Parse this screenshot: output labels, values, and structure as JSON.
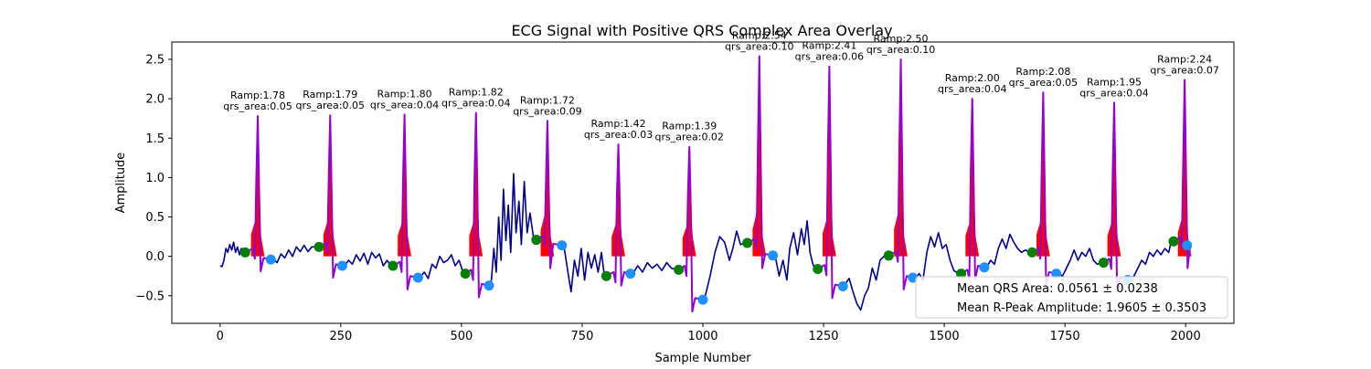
{
  "chart_data": {
    "type": "line",
    "title": "ECG Signal with Positive QRS Complex Area Overlay",
    "xlabel": "Sample Number",
    "ylabel": "Amplitude",
    "xlim": [
      -100,
      2100
    ],
    "ylim": [
      -0.85,
      2.72
    ],
    "x_ticks": [
      0,
      250,
      500,
      750,
      1000,
      1250,
      1500,
      1750,
      2000
    ],
    "y_ticks": [
      -0.5,
      0.0,
      0.5,
      1.0,
      1.5,
      2.0,
      2.5
    ],
    "x_tick_labels": [
      "0",
      "250",
      "500",
      "750",
      "1000",
      "1250",
      "1500",
      "1750",
      "2000"
    ],
    "y_tick_labels": [
      "−0.5",
      "0.0",
      "0.5",
      "1.0",
      "1.5",
      "2.0",
      "2.5"
    ],
    "grid": false,
    "colors": {
      "signal": "#00008b",
      "qrs_segment": "#9400d3",
      "qrs_area": "#ff0000",
      "qrs_onset": "#008000",
      "qrs_offset": "#1e90ff"
    },
    "beats": [
      {
        "r_sample": 78,
        "r_amp": 1.78,
        "qrs_area": 0.05,
        "label_line1": "Ramp:1.78",
        "label_line2": "qrs_area:0.05",
        "onset": [
          52,
          0.05
        ],
        "offset": [
          105,
          -0.04
        ]
      },
      {
        "r_sample": 228,
        "r_amp": 1.79,
        "qrs_area": 0.05,
        "label_line1": "Ramp:1.79",
        "label_line2": "qrs_area:0.05",
        "onset": [
          205,
          0.12
        ],
        "offset": [
          253,
          -0.12
        ]
      },
      {
        "r_sample": 382,
        "r_amp": 1.8,
        "qrs_area": 0.04,
        "label_line1": "Ramp:1.80",
        "label_line2": "qrs_area:0.04",
        "onset": [
          358,
          -0.12
        ],
        "offset": [
          410,
          -0.27
        ]
      },
      {
        "r_sample": 530,
        "r_amp": 1.82,
        "qrs_area": 0.04,
        "label_line1": "Ramp:1.82",
        "label_line2": "qrs_area:0.04",
        "onset": [
          508,
          -0.22
        ],
        "offset": [
          557,
          -0.37
        ]
      },
      {
        "r_sample": 678,
        "r_amp": 1.72,
        "qrs_area": 0.09,
        "label_line1": "Ramp:1.72",
        "label_line2": "qrs_area:0.09",
        "onset": [
          655,
          0.21
        ],
        "offset": [
          708,
          0.14
        ]
      },
      {
        "r_sample": 825,
        "r_amp": 1.42,
        "qrs_area": 0.03,
        "label_line1": "Ramp:1.42",
        "label_line2": "qrs_area:0.03",
        "onset": [
          800,
          -0.25
        ],
        "offset": [
          850,
          -0.22
        ]
      },
      {
        "r_sample": 972,
        "r_amp": 1.39,
        "qrs_area": 0.02,
        "label_line1": "Ramp:1.39",
        "label_line2": "qrs_area:0.02",
        "onset": [
          950,
          -0.17
        ],
        "offset": [
          1000,
          -0.55
        ]
      },
      {
        "r_sample": 1117,
        "r_amp": 2.54,
        "qrs_area": 0.1,
        "label_line1": "Ramp:2.54",
        "label_line2": "qrs_area:0.10",
        "onset": [
          1092,
          0.17
        ],
        "offset": [
          1145,
          0.01
        ]
      },
      {
        "r_sample": 1262,
        "r_amp": 2.41,
        "qrs_area": 0.06,
        "label_line1": "Ramp:2.41",
        "label_line2": "qrs_area:0.06",
        "onset": [
          1238,
          -0.16
        ],
        "offset": [
          1290,
          -0.38
        ]
      },
      {
        "r_sample": 1410,
        "r_amp": 2.5,
        "qrs_area": 0.1,
        "label_line1": "Ramp:2.50",
        "label_line2": "qrs_area:0.10",
        "onset": [
          1385,
          0.01
        ],
        "offset": [
          1435,
          -0.27
        ]
      },
      {
        "r_sample": 1558,
        "r_amp": 2.0,
        "qrs_area": 0.04,
        "label_line1": "Ramp:2.00",
        "label_line2": "qrs_area:0.04",
        "onset": [
          1535,
          -0.22
        ],
        "offset": [
          1583,
          -0.14
        ]
      },
      {
        "r_sample": 1705,
        "r_amp": 2.08,
        "qrs_area": 0.05,
        "label_line1": "Ramp:2.08",
        "label_line2": "qrs_area:0.05",
        "onset": [
          1682,
          0.05
        ],
        "offset": [
          1732,
          -0.22
        ]
      },
      {
        "r_sample": 1852,
        "r_amp": 1.95,
        "qrs_area": 0.04,
        "label_line1": "Ramp:1.95",
        "label_line2": "qrs_area:0.04",
        "onset": [
          1830,
          -0.08
        ],
        "offset": [
          1880,
          -0.3
        ]
      },
      {
        "r_sample": 1998,
        "r_amp": 2.24,
        "qrs_area": 0.07,
        "label_line1": "Ramp:2.24",
        "label_line2": "qrs_area:0.07",
        "onset": [
          1975,
          0.19
        ],
        "offset": [
          2003,
          0.14
        ]
      }
    ],
    "baseline_segments": [
      {
        "start": 0,
        "end": 47,
        "points": [
          [
            0,
            -0.12
          ],
          [
            4,
            -0.13
          ],
          [
            8,
            -0.05
          ],
          [
            12,
            0.1
          ],
          [
            16,
            0.05
          ],
          [
            20,
            0.15
          ],
          [
            24,
            0.08
          ],
          [
            28,
            0.18
          ],
          [
            32,
            0.05
          ],
          [
            36,
            0.12
          ],
          [
            40,
            0.02
          ],
          [
            44,
            0.1
          ],
          [
            47,
            0.05
          ]
        ]
      },
      {
        "start": 110,
        "end": 200,
        "points": [
          [
            110,
            -0.03
          ],
          [
            118,
            -0.08
          ],
          [
            126,
            0.03
          ],
          [
            134,
            -0.02
          ],
          [
            142,
            0.08
          ],
          [
            150,
            0.0
          ],
          [
            158,
            0.12
          ],
          [
            166,
            0.06
          ],
          [
            174,
            0.14
          ],
          [
            182,
            0.06
          ],
          [
            190,
            0.12
          ],
          [
            200,
            0.12
          ]
        ]
      },
      {
        "start": 258,
        "end": 353,
        "points": [
          [
            258,
            -0.12
          ],
          [
            266,
            -0.05
          ],
          [
            274,
            -0.1
          ],
          [
            282,
            0.02
          ],
          [
            290,
            -0.06
          ],
          [
            298,
            0.04
          ],
          [
            306,
            -0.1
          ],
          [
            314,
            0.05
          ],
          [
            322,
            -0.02
          ],
          [
            330,
            0.03
          ],
          [
            338,
            -0.12
          ],
          [
            346,
            -0.05
          ],
          [
            353,
            -0.12
          ]
        ]
      },
      {
        "start": 415,
        "end": 503,
        "points": [
          [
            415,
            -0.26
          ],
          [
            423,
            -0.2
          ],
          [
            431,
            -0.28
          ],
          [
            439,
            -0.1
          ],
          [
            447,
            -0.15
          ],
          [
            455,
            0.0
          ],
          [
            463,
            -0.08
          ],
          [
            471,
            -0.05
          ],
          [
            479,
            0.02
          ],
          [
            487,
            -0.12
          ],
          [
            495,
            -0.05
          ],
          [
            503,
            -0.2
          ]
        ]
      },
      {
        "start": 562,
        "end": 650,
        "points": [
          [
            562,
            -0.3
          ],
          [
            567,
            0.1
          ],
          [
            572,
            -0.2
          ],
          [
            577,
            0.5
          ],
          [
            582,
            -0.05
          ],
          [
            587,
            0.85
          ],
          [
            592,
            0.2
          ],
          [
            597,
            0.65
          ],
          [
            602,
            0.05
          ],
          [
            608,
            1.05
          ],
          [
            613,
            0.3
          ],
          [
            619,
            0.7
          ],
          [
            624,
            0.15
          ],
          [
            630,
            0.95
          ],
          [
            636,
            0.3
          ],
          [
            642,
            0.55
          ],
          [
            650,
            0.2
          ]
        ]
      },
      {
        "start": 713,
        "end": 795,
        "points": [
          [
            713,
            0.1
          ],
          [
            720,
            -0.18
          ],
          [
            727,
            -0.45
          ],
          [
            734,
            -0.05
          ],
          [
            741,
            -0.25
          ],
          [
            748,
            0.1
          ],
          [
            755,
            -0.3
          ],
          [
            762,
            0.05
          ],
          [
            769,
            -0.15
          ],
          [
            776,
            0.02
          ],
          [
            783,
            -0.2
          ],
          [
            790,
            0.05
          ],
          [
            795,
            -0.2
          ]
        ]
      },
      {
        "start": 855,
        "end": 945,
        "points": [
          [
            855,
            -0.22
          ],
          [
            865,
            -0.12
          ],
          [
            875,
            -0.2
          ],
          [
            885,
            -0.08
          ],
          [
            895,
            -0.15
          ],
          [
            905,
            -0.1
          ],
          [
            915,
            -0.18
          ],
          [
            925,
            -0.08
          ],
          [
            935,
            -0.15
          ],
          [
            945,
            -0.17
          ]
        ]
      },
      {
        "start": 1005,
        "end": 1087,
        "points": [
          [
            1005,
            -0.5
          ],
          [
            1015,
            -0.25
          ],
          [
            1025,
            0.05
          ],
          [
            1035,
            0.25
          ],
          [
            1045,
            0.18
          ],
          [
            1055,
            -0.05
          ],
          [
            1062,
            0.1
          ],
          [
            1070,
            0.32
          ],
          [
            1078,
            0.15
          ],
          [
            1087,
            0.17
          ]
        ]
      },
      {
        "start": 1150,
        "end": 1233,
        "points": [
          [
            1150,
            0.0
          ],
          [
            1158,
            -0.25
          ],
          [
            1166,
            -0.05
          ],
          [
            1174,
            -0.3
          ],
          [
            1180,
            0.1
          ],
          [
            1188,
            0.3
          ],
          [
            1196,
            0.02
          ],
          [
            1204,
            0.35
          ],
          [
            1210,
            0.15
          ],
          [
            1216,
            0.45
          ],
          [
            1222,
            0.05
          ],
          [
            1228,
            -0.1
          ],
          [
            1233,
            -0.16
          ]
        ]
      },
      {
        "start": 1295,
        "end": 1380,
        "points": [
          [
            1295,
            -0.35
          ],
          [
            1303,
            -0.28
          ],
          [
            1311,
            -0.45
          ],
          [
            1319,
            -0.6
          ],
          [
            1327,
            -0.68
          ],
          [
            1335,
            -0.5
          ],
          [
            1343,
            -0.4
          ],
          [
            1351,
            -0.15
          ],
          [
            1359,
            -0.3
          ],
          [
            1367,
            -0.05
          ],
          [
            1375,
            0.0
          ],
          [
            1380,
            0.01
          ]
        ]
      },
      {
        "start": 1440,
        "end": 1530,
        "points": [
          [
            1440,
            -0.27
          ],
          [
            1448,
            -0.22
          ],
          [
            1456,
            -0.3
          ],
          [
            1464,
            0.05
          ],
          [
            1472,
            0.25
          ],
          [
            1480,
            0.12
          ],
          [
            1488,
            0.3
          ],
          [
            1496,
            0.1
          ],
          [
            1504,
            0.15
          ],
          [
            1512,
            -0.05
          ],
          [
            1520,
            -0.18
          ],
          [
            1530,
            -0.22
          ]
        ]
      },
      {
        "start": 1588,
        "end": 1677,
        "points": [
          [
            1588,
            -0.14
          ],
          [
            1596,
            -0.05
          ],
          [
            1604,
            -0.1
          ],
          [
            1612,
            0.1
          ],
          [
            1620,
            0.22
          ],
          [
            1628,
            0.1
          ],
          [
            1636,
            0.28
          ],
          [
            1644,
            0.18
          ],
          [
            1652,
            0.1
          ],
          [
            1660,
            0.05
          ],
          [
            1668,
            0.08
          ],
          [
            1677,
            0.05
          ]
        ]
      },
      {
        "start": 1737,
        "end": 1825,
        "points": [
          [
            1737,
            -0.22
          ],
          [
            1745,
            -0.25
          ],
          [
            1753,
            -0.15
          ],
          [
            1761,
            -0.05
          ],
          [
            1769,
            0.08
          ],
          [
            1777,
            -0.05
          ],
          [
            1785,
            0.05
          ],
          [
            1793,
            0.0
          ],
          [
            1801,
            0.1
          ],
          [
            1809,
            -0.05
          ],
          [
            1817,
            -0.1
          ],
          [
            1825,
            -0.08
          ]
        ]
      },
      {
        "start": 1885,
        "end": 1970,
        "points": [
          [
            1885,
            -0.3
          ],
          [
            1893,
            -0.25
          ],
          [
            1901,
            -0.15
          ],
          [
            1909,
            -0.05
          ],
          [
            1917,
            -0.1
          ],
          [
            1925,
            0.05
          ],
          [
            1933,
            0.0
          ],
          [
            1941,
            0.08
          ],
          [
            1949,
            0.02
          ],
          [
            1957,
            0.1
          ],
          [
            1965,
            0.05
          ],
          [
            1970,
            0.19
          ]
        ]
      }
    ],
    "legend": {
      "placement": "lower right",
      "entries": [
        "Mean QRS Area: 0.0561 ± 0.0238",
        "Mean R-Peak Amplitude: 1.9605 ± 0.3503"
      ]
    }
  }
}
